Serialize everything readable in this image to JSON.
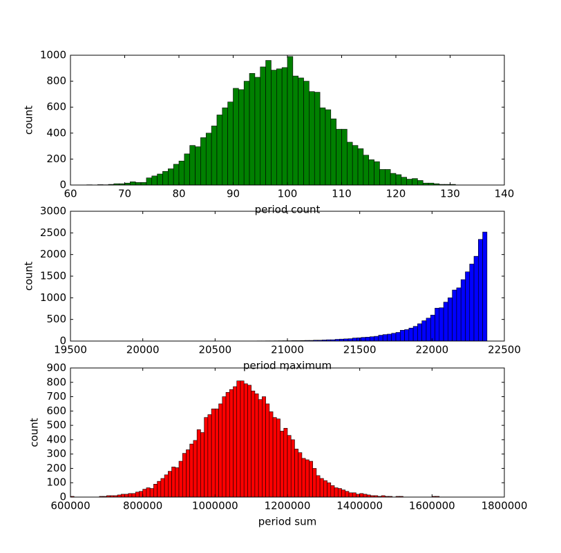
{
  "chart_data": [
    {
      "type": "histogram",
      "color": "#008000",
      "x_label": "period count",
      "y_label": "count",
      "xlim": [
        60,
        140
      ],
      "ylim": [
        0,
        1000
      ],
      "xticks": [
        60,
        70,
        80,
        90,
        100,
        110,
        120,
        130,
        140
      ],
      "yticks": [
        0,
        200,
        400,
        600,
        800,
        1000
      ],
      "bins": [
        63,
        64,
        65,
        66,
        67,
        68,
        69,
        70,
        71,
        72,
        73,
        74,
        75,
        76,
        77,
        78,
        79,
        80,
        81,
        82,
        83,
        84,
        85,
        86,
        87,
        88,
        89,
        90,
        91,
        92,
        93,
        94,
        95,
        96,
        97,
        98,
        99,
        100,
        101,
        102,
        103,
        104,
        105,
        106,
        107,
        108,
        109,
        110,
        111,
        112,
        113,
        114,
        115,
        116,
        117,
        118,
        119,
        120,
        121,
        122,
        123,
        124,
        125,
        126,
        127,
        128,
        129,
        130,
        131
      ],
      "values": [
        2,
        0,
        3,
        2,
        5,
        10,
        10,
        15,
        25,
        20,
        20,
        55,
        70,
        85,
        105,
        125,
        160,
        185,
        240,
        305,
        295,
        365,
        400,
        455,
        540,
        595,
        640,
        745,
        735,
        800,
        860,
        830,
        910,
        960,
        885,
        895,
        905,
        990,
        840,
        825,
        800,
        720,
        715,
        595,
        580,
        510,
        430,
        430,
        330,
        305,
        280,
        230,
        195,
        180,
        120,
        120,
        90,
        80,
        60,
        45,
        50,
        35,
        15,
        15,
        10,
        5,
        5,
        5
      ]
    },
    {
      "type": "histogram",
      "color": "#0000ff",
      "x_label": "period maximum",
      "y_label": "count",
      "xlim": [
        19500,
        22500
      ],
      "ylim": [
        0,
        3000
      ],
      "xticks": [
        19500,
        20000,
        20500,
        21000,
        21500,
        22000,
        22500
      ],
      "yticks": [
        0,
        500,
        1000,
        1500,
        2000,
        2500,
        3000
      ],
      "bins": [
        19740,
        19770,
        19800,
        19830,
        19860,
        19890,
        19920,
        19950,
        19980,
        20010,
        20040,
        20070,
        20100,
        20130,
        20160,
        20190,
        20220,
        20250,
        20280,
        20310,
        20340,
        20370,
        20400,
        20430,
        20460,
        20490,
        20520,
        20550,
        20580,
        20610,
        20640,
        20670,
        20700,
        20730,
        20760,
        20790,
        20820,
        20850,
        20880,
        20910,
        20940,
        20970,
        21000,
        21030,
        21060,
        21090,
        21120,
        21150,
        21180,
        21210,
        21240,
        21270,
        21300,
        21330,
        21360,
        21390,
        21420,
        21450,
        21480,
        21510,
        21540,
        21570,
        21600,
        21630,
        21660,
        21690,
        21720,
        21750,
        21780,
        21810,
        21840,
        21870,
        21900,
        21930,
        21960,
        21990,
        22020,
        22050,
        22080,
        22110,
        22140,
        22170,
        22200,
        22230,
        22260,
        22290,
        22320,
        22350,
        22380
      ],
      "values": [
        2,
        0,
        0,
        0,
        0,
        0,
        0,
        0,
        0,
        0,
        0,
        0,
        0,
        0,
        0,
        0,
        0,
        0,
        0,
        0,
        1,
        0,
        0,
        0,
        0,
        0,
        0,
        0,
        2,
        2,
        2,
        2,
        3,
        3,
        3,
        4,
        4,
        5,
        5,
        6,
        7,
        8,
        8,
        10,
        10,
        12,
        15,
        15,
        20,
        20,
        25,
        30,
        30,
        40,
        45,
        50,
        55,
        70,
        75,
        85,
        90,
        100,
        110,
        135,
        150,
        160,
        180,
        200,
        250,
        265,
        300,
        340,
        400,
        470,
        530,
        600,
        760,
        770,
        900,
        1000,
        1180,
        1230,
        1420,
        1600,
        1780,
        1960,
        2350,
        2520
      ]
    },
    {
      "type": "histogram",
      "color": "#ff0000",
      "x_label": "period sum",
      "y_label": "count",
      "xlim": [
        600000,
        1800000
      ],
      "ylim": [
        0,
        900
      ],
      "xticks": [
        600000,
        800000,
        1000000,
        1200000,
        1400000,
        1600000,
        1800000
      ],
      "yticks": [
        0,
        100,
        200,
        300,
        400,
        500,
        600,
        700,
        800,
        900
      ],
      "bins": [
        600000,
        610000,
        620000,
        630000,
        640000,
        650000,
        660000,
        670000,
        680000,
        690000,
        700000,
        710000,
        720000,
        730000,
        740000,
        750000,
        760000,
        770000,
        780000,
        790000,
        800000,
        810000,
        820000,
        830000,
        840000,
        850000,
        860000,
        870000,
        880000,
        890000,
        900000,
        910000,
        920000,
        930000,
        940000,
        950000,
        960000,
        970000,
        980000,
        990000,
        1000000,
        1010000,
        1020000,
        1030000,
        1040000,
        1050000,
        1060000,
        1070000,
        1080000,
        1090000,
        1100000,
        1110000,
        1120000,
        1130000,
        1140000,
        1150000,
        1160000,
        1170000,
        1180000,
        1190000,
        1200000,
        1210000,
        1220000,
        1230000,
        1240000,
        1250000,
        1260000,
        1270000,
        1280000,
        1290000,
        1300000,
        1310000,
        1320000,
        1330000,
        1340000,
        1350000,
        1360000,
        1370000,
        1380000,
        1390000,
        1400000,
        1410000,
        1420000,
        1430000,
        1440000,
        1450000,
        1460000,
        1470000,
        1480000,
        1490000,
        1500000,
        1510000,
        1520000,
        1530000,
        1540000,
        1550000,
        1560000,
        1570000,
        1580000,
        1590000,
        1600000,
        1610000,
        1620000
      ],
      "values": [
        5,
        0,
        0,
        0,
        0,
        0,
        0,
        0,
        5,
        5,
        10,
        10,
        10,
        15,
        20,
        20,
        25,
        25,
        35,
        40,
        55,
        65,
        60,
        90,
        110,
        130,
        155,
        180,
        210,
        205,
        250,
        305,
        330,
        370,
        395,
        470,
        450,
        555,
        575,
        615,
        615,
        650,
        700,
        730,
        750,
        770,
        810,
        810,
        790,
        780,
        740,
        720,
        680,
        700,
        650,
        595,
        555,
        545,
        460,
        480,
        430,
        400,
        335,
        310,
        270,
        260,
        250,
        200,
        150,
        130,
        115,
        100,
        80,
        65,
        60,
        50,
        40,
        30,
        30,
        20,
        25,
        20,
        15,
        10,
        10,
        5,
        10,
        5,
        5,
        0,
        5,
        5,
        0,
        0,
        0,
        0,
        0,
        0,
        0,
        0,
        5,
        5
      ]
    }
  ]
}
